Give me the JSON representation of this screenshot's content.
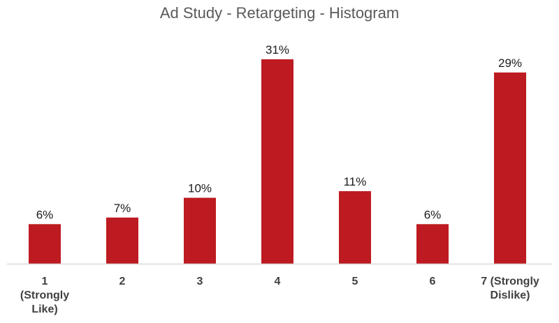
{
  "chart_data": {
    "type": "bar",
    "title": "Ad Study - Retargeting - Histogram",
    "xlabel": "",
    "ylabel": "",
    "categories": [
      "1 (Strongly Like)",
      "2",
      "3",
      "4",
      "5",
      "6",
      "7 (Strongly Dislike)"
    ],
    "tick_label_lines": [
      [
        "1",
        "(Strongly",
        "Like)"
      ],
      [
        "2"
      ],
      [
        "3"
      ],
      [
        "4"
      ],
      [
        "5"
      ],
      [
        "6"
      ],
      [
        "7 (Strongly",
        "Dislike)"
      ]
    ],
    "values": [
      6,
      7,
      10,
      31,
      11,
      6,
      29
    ],
    "value_labels": [
      "6%",
      "7%",
      "10%",
      "31%",
      "11%",
      "6%",
      "29%"
    ],
    "value_unit": "%",
    "ylim": [
      0,
      31
    ],
    "grid": false,
    "legend": "none",
    "bar_color": "#BD1B21",
    "axis_color": "#D9D9D9"
  }
}
